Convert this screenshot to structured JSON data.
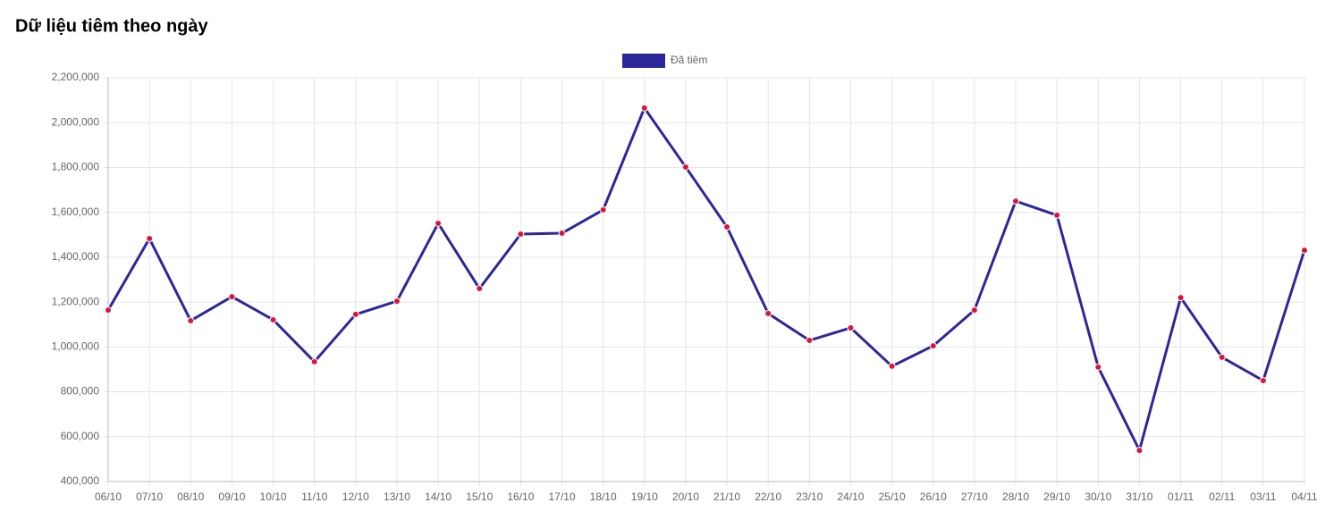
{
  "chart_data": {
    "type": "line",
    "title": "Dữ liệu tiêm theo ngày",
    "categories": [
      "06/10",
      "07/10",
      "08/10",
      "09/10",
      "10/10",
      "11/10",
      "12/10",
      "13/10",
      "14/10",
      "15/10",
      "16/10",
      "17/10",
      "18/10",
      "19/10",
      "20/10",
      "21/10",
      "22/10",
      "23/10",
      "24/10",
      "25/10",
      "26/10",
      "27/10",
      "28/10",
      "29/10",
      "30/10",
      "31/10",
      "01/11",
      "02/11",
      "03/11",
      "04/11"
    ],
    "series": [
      {
        "name": "Đã tiêm",
        "color": "#2e2799",
        "point_color": "#dc143c",
        "values": [
          1164000,
          1483000,
          1117000,
          1224000,
          1121000,
          934000,
          1145000,
          1204000,
          1551000,
          1260000,
          1503000,
          1507000,
          1611000,
          2065000,
          1802000,
          1535000,
          1149000,
          1029000,
          1085000,
          914000,
          1005000,
          1164000,
          1650000,
          1587000,
          910000,
          539000,
          1220000,
          954000,
          850000,
          1431000
        ]
      }
    ],
    "ylim": [
      400000,
      2200000
    ],
    "yticks": [
      {
        "value": 400000,
        "label": "400,000"
      },
      {
        "value": 600000,
        "label": "600,000"
      },
      {
        "value": 800000,
        "label": "800,000"
      },
      {
        "value": 1000000,
        "label": "1,000,000"
      },
      {
        "value": 1200000,
        "label": "1,200,000"
      },
      {
        "value": 1400000,
        "label": "1,400,000"
      },
      {
        "value": 1600000,
        "label": "1,600,000"
      },
      {
        "value": 1800000,
        "label": "1,800,000"
      },
      {
        "value": 2000000,
        "label": "2,000,000"
      },
      {
        "value": 2200000,
        "label": "2,200,000"
      }
    ],
    "grid": true,
    "legend": "top"
  }
}
